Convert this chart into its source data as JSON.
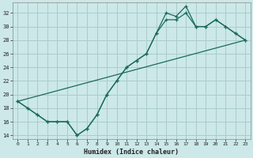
{
  "xlabel": "Humidex (Indice chaleur)",
  "background_color": "#cce8e8",
  "grid_color": "#aacccc",
  "line_color": "#1a6b5a",
  "xlim": [
    -0.5,
    23.5
  ],
  "ylim": [
    13.5,
    33.5
  ],
  "xticks": [
    0,
    1,
    2,
    3,
    4,
    5,
    6,
    7,
    8,
    9,
    10,
    11,
    12,
    13,
    14,
    15,
    16,
    17,
    18,
    19,
    20,
    21,
    22,
    23
  ],
  "yticks": [
    14,
    16,
    18,
    20,
    22,
    24,
    26,
    28,
    30,
    32
  ],
  "series1_x": [
    0,
    1,
    2,
    3,
    4,
    5,
    6,
    7,
    8,
    9,
    10,
    11,
    12,
    13,
    14,
    15,
    16,
    17,
    18,
    19,
    20,
    21,
    22,
    23
  ],
  "series1_y": [
    19,
    18,
    17,
    16,
    16,
    16,
    14,
    15,
    17,
    20,
    22,
    24,
    25,
    26,
    29,
    31,
    31,
    32,
    30,
    30,
    31,
    30,
    29,
    28
  ],
  "series2_x": [
    0,
    1,
    2,
    3,
    4,
    5,
    6,
    7,
    8,
    9,
    10,
    11,
    12,
    13,
    14,
    15,
    16,
    17,
    18,
    19,
    20,
    21,
    22,
    23
  ],
  "series2_y": [
    19,
    18,
    17,
    16,
    16,
    16,
    14,
    15,
    17,
    20,
    22,
    24,
    25,
    26,
    29,
    32,
    31.5,
    33,
    30,
    30,
    31,
    30,
    29,
    28
  ],
  "series3_x": [
    0,
    23
  ],
  "series3_y": [
    19,
    28
  ]
}
